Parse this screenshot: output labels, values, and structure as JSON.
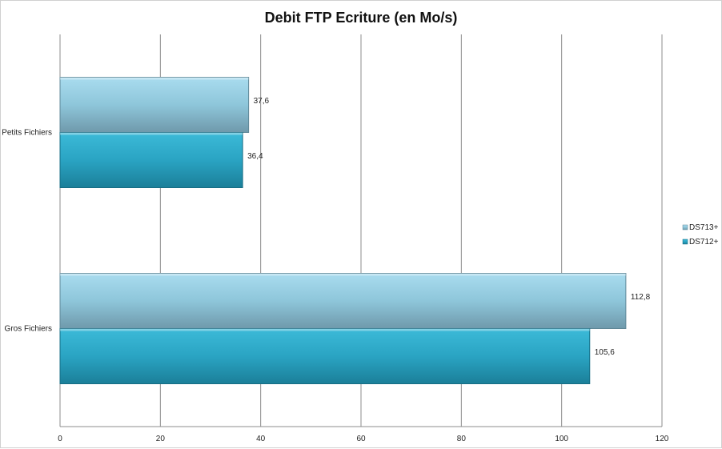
{
  "chart_data": {
    "type": "bar",
    "orientation": "horizontal",
    "title": "Debit FTP Ecriture (en Mo/s)",
    "categories": [
      "Petits Fichiers",
      "Gros Fichiers"
    ],
    "series": [
      {
        "name": "DS713+",
        "values": [
          37.6,
          112.8
        ],
        "value_labels": [
          "37,6",
          "112,8"
        ],
        "color": "#8fc9dd"
      },
      {
        "name": "DS712+",
        "values": [
          36.4,
          105.6
        ],
        "value_labels": [
          "36,4",
          "105,6"
        ],
        "color": "#2ba3c2"
      }
    ],
    "xlim": [
      0,
      120
    ],
    "xticks": [
      0,
      20,
      40,
      60,
      80,
      100,
      120
    ],
    "grid": true,
    "legend_position": "right"
  }
}
